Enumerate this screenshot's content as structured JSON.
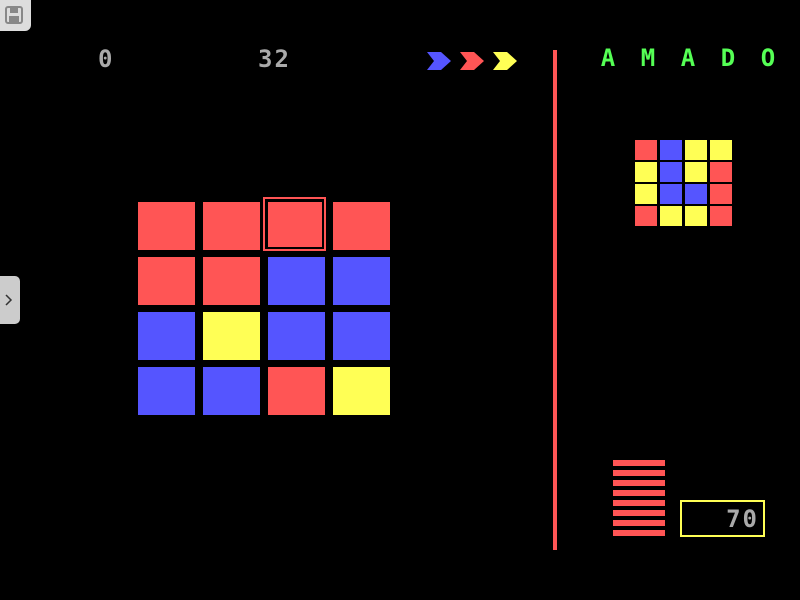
{
  "colors": {
    "R": "#ff5555",
    "B": "#5555ff",
    "Y": "#ffff55",
    "green": "#55ff55",
    "gray": "#aaaaaa"
  },
  "score": "0",
  "moves": "32",
  "counter": "70",
  "title_letters": [
    "A",
    "M",
    "A",
    "D",
    "O"
  ],
  "next_arrows": [
    "B",
    "R",
    "Y"
  ],
  "board": [
    [
      "R",
      "R",
      "R",
      "R"
    ],
    [
      "R",
      "R",
      "B",
      "B"
    ],
    [
      "B",
      "Y",
      "B",
      "B"
    ],
    [
      "B",
      "B",
      "R",
      "Y"
    ]
  ],
  "selected": {
    "row": 0,
    "col": 2
  },
  "target": [
    [
      "R",
      "B",
      "Y",
      "Y"
    ],
    [
      "Y",
      "B",
      "Y",
      "R"
    ],
    [
      "Y",
      "B",
      "B",
      "R"
    ],
    [
      "R",
      "Y",
      "Y",
      "R"
    ]
  ],
  "lives_bars": 8,
  "toolbar": {
    "save_icon": "floppy-disk-icon",
    "expand_icon": "chevron-right-icon"
  }
}
